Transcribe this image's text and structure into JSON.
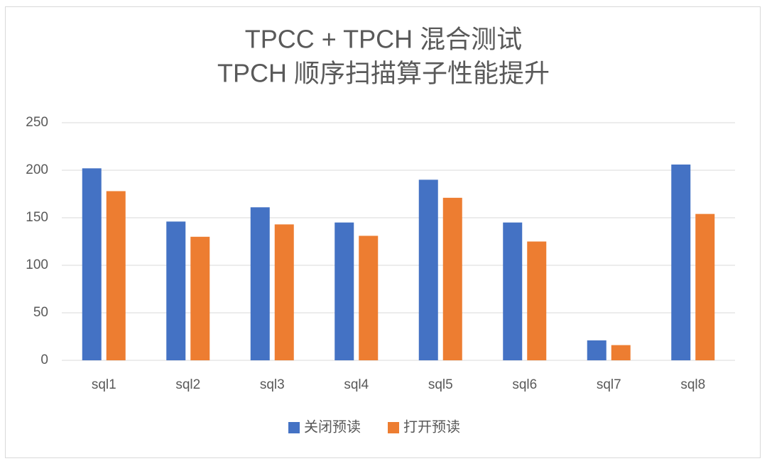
{
  "chart_data": {
    "type": "bar",
    "title": [
      "TPCC + TPCH 混合测试",
      "TPCH 顺序扫描算子性能提升"
    ],
    "categories": [
      "sql1",
      "sql2",
      "sql3",
      "sql4",
      "sql5",
      "sql6",
      "sql7",
      "sql8"
    ],
    "series": [
      {
        "name": "关闭预读",
        "color": "#4472c4",
        "values": [
          202,
          146,
          161,
          145,
          190,
          145,
          21,
          206
        ]
      },
      {
        "name": "打开预读",
        "color": "#ed7d31",
        "values": [
          178,
          130,
          143,
          131,
          171,
          125,
          16,
          154
        ]
      }
    ],
    "ylim": [
      0,
      250
    ],
    "yticks": [
      0,
      50,
      100,
      150,
      200,
      250
    ],
    "grid": true,
    "legend": "bottom"
  }
}
